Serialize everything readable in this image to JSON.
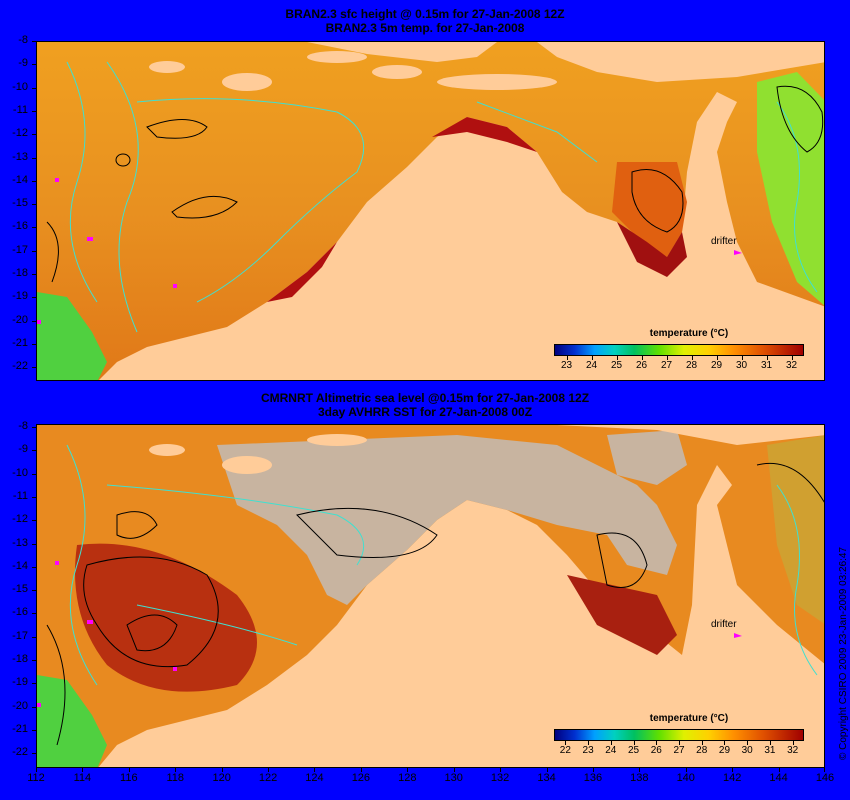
{
  "top_panel": {
    "title_line1": "BRAN2.3 sfc height @ 0.15m for 27-Jan-2008 12Z",
    "title_line2": "BRAN2.3 5m temp. for 27-Jan-2008",
    "colorbar_title": "temperature (°C)",
    "colorbar_ticks": [
      "23",
      "24",
      "25",
      "26",
      "27",
      "28",
      "29",
      "30",
      "31",
      "32"
    ],
    "drifter_label": "drifter"
  },
  "bottom_panel": {
    "title_line1": "CMRNRT Altimetric sea level  @0.15m  for 27-Jan-2008 12Z",
    "title_line2": "3day AVHRR SST for 27-Jan-2008 00Z",
    "colorbar_title": "temperature (°C)",
    "colorbar_ticks": [
      "22",
      "23",
      "24",
      "25",
      "26",
      "27",
      "28",
      "29",
      "30",
      "31",
      "32"
    ],
    "drifter_label": "drifter"
  },
  "y_axis_labels": [
    "-8",
    "-9",
    "-10",
    "-11",
    "-12",
    "-13",
    "-14",
    "-15",
    "-16",
    "-17",
    "-18",
    "-19",
    "-20",
    "-21",
    "-22"
  ],
  "x_axis_labels": [
    "112",
    "114",
    "116",
    "118",
    "120",
    "122",
    "124",
    "126",
    "128",
    "130",
    "132",
    "134",
    "136",
    "138",
    "140",
    "142",
    "144",
    "146"
  ],
  "copyright": "© Copyright CSIRO 2009   23-Jan-2009 03:26:47",
  "colors": {
    "background": "#0000ff",
    "land": "#ffcc99",
    "contour_cyan": "#40e0d0",
    "no_data_gray": "#c8b4a0",
    "drifter": "#ff00ff"
  }
}
